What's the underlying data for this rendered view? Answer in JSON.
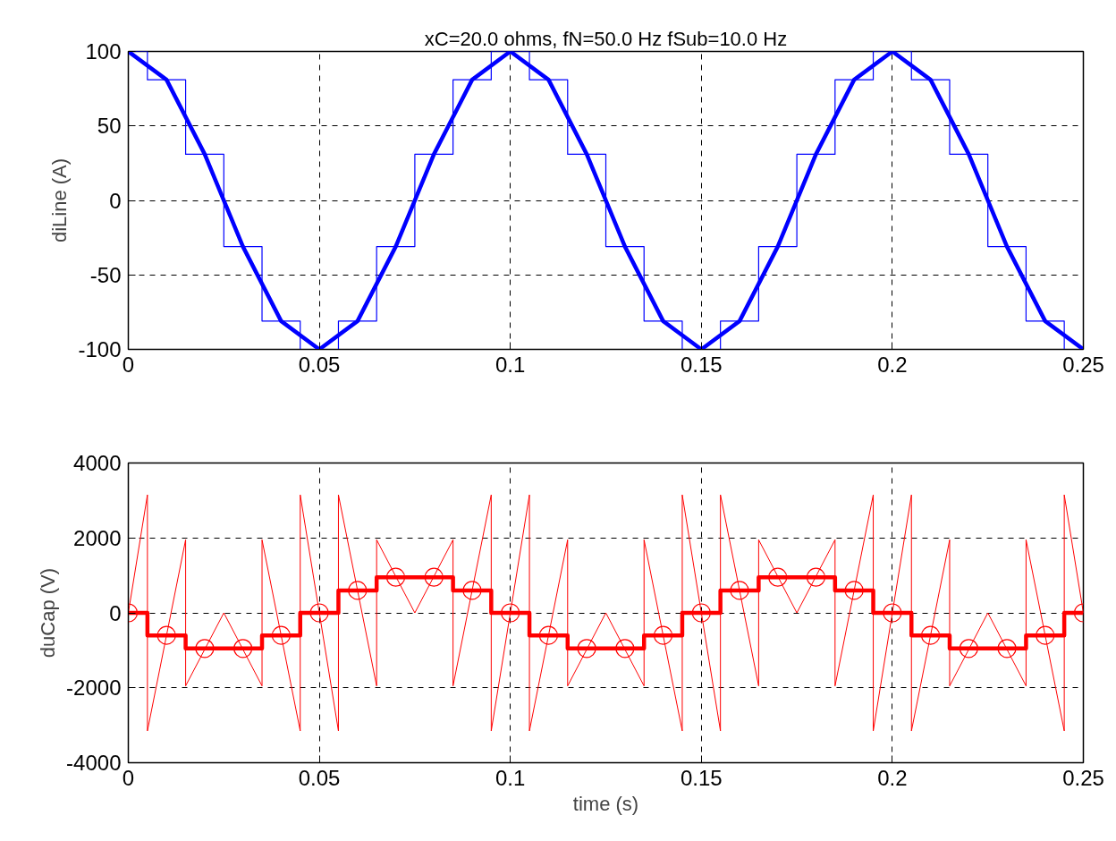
{
  "chart_data": [
    {
      "type": "line",
      "title": "xC=20.0 ohms, fN=50.0 Hz fSub=10.0 Hz",
      "ylabel": "diLine (A)",
      "xlim": [
        0,
        0.25
      ],
      "xticks": [
        0,
        0.05,
        0.1,
        0.15,
        0.2,
        0.25
      ],
      "ylim": [
        -100,
        100
      ],
      "yticks": [
        -100,
        -50,
        0,
        50,
        100
      ],
      "grid": true,
      "series": [
        {
          "color": "#0000ff",
          "x": [
            0,
            0.01,
            0.02,
            0.03,
            0.04,
            0.05,
            0.06,
            0.07,
            0.08,
            0.09,
            0.1,
            0.11,
            0.12,
            0.13,
            0.14,
            0.15,
            0.16,
            0.17,
            0.18,
            0.19,
            0.2,
            0.21,
            0.22,
            0.23,
            0.24,
            0.25
          ],
          "values": [
            100,
            81,
            31,
            -31,
            -81,
            -100,
            -81,
            -31,
            31,
            81,
            100,
            81,
            31,
            -31,
            -81,
            -100,
            -81,
            -31,
            31,
            81,
            100,
            81,
            31,
            -31,
            -81,
            -100
          ]
        },
        {
          "type": "step",
          "color": "#0000ff",
          "x": [
            0,
            0.01,
            0.02,
            0.03,
            0.04,
            0.05,
            0.06,
            0.07,
            0.08,
            0.09,
            0.1,
            0.11,
            0.12,
            0.13,
            0.14,
            0.15,
            0.16,
            0.17,
            0.18,
            0.19,
            0.2,
            0.21,
            0.22,
            0.23,
            0.24,
            0.25
          ],
          "values": [
            100,
            81,
            31,
            -31,
            -81,
            -100,
            -81,
            -31,
            31,
            81,
            100,
            81,
            31,
            -31,
            -81,
            -100,
            -81,
            -31,
            31,
            81,
            100,
            81,
            31,
            -31,
            -81,
            -100
          ]
        }
      ]
    },
    {
      "type": "line",
      "xlabel": "time (s)",
      "ylabel": "duCap (V)",
      "xlim": [
        0,
        0.25
      ],
      "xticks": [
        0,
        0.05,
        0.1,
        0.15,
        0.2,
        0.25
      ],
      "ylim": [
        -4000,
        4000
      ],
      "yticks": [
        -4000,
        -2000,
        0,
        2000,
        4000
      ],
      "grid": true,
      "series": [
        {
          "color": "#ff0000",
          "x": [
            0,
            0.005,
            0.005,
            0.015,
            0.015,
            0.025,
            0.035,
            0.035,
            0.045,
            0.045,
            0.055,
            0.055,
            0.065,
            0.065,
            0.075,
            0.085,
            0.085,
            0.095,
            0.095,
            0.105,
            0.105,
            0.115,
            0.115,
            0.125,
            0.135,
            0.135,
            0.145,
            0.145,
            0.155,
            0.155,
            0.165,
            0.165,
            0.175,
            0.185,
            0.185,
            0.195,
            0.195,
            0.205,
            0.205,
            0.215,
            0.215,
            0.225,
            0.235,
            0.235,
            0.245,
            0.245,
            0.25
          ],
          "values": [
            0,
            3150,
            -3150,
            1950,
            -1950,
            0,
            -1950,
            1950,
            -3150,
            3150,
            -3150,
            3150,
            -1950,
            1950,
            0,
            1950,
            -1950,
            3150,
            -3150,
            3150,
            -3150,
            1950,
            -1950,
            0,
            -1950,
            1950,
            -3150,
            3150,
            -3150,
            3150,
            -1950,
            1950,
            0,
            1950,
            -1950,
            3150,
            -3150,
            3150,
            -3150,
            1950,
            -1950,
            0,
            -1950,
            1950,
            -3150,
            3150,
            0
          ]
        },
        {
          "type": "step",
          "color": "#ff0000",
          "x": [
            0,
            0.01,
            0.02,
            0.03,
            0.04,
            0.05,
            0.06,
            0.07,
            0.08,
            0.09,
            0.1,
            0.11,
            0.12,
            0.13,
            0.14,
            0.15,
            0.16,
            0.17,
            0.18,
            0.19,
            0.2,
            0.21,
            0.22,
            0.23,
            0.24,
            0.25
          ],
          "values": [
            0,
            -600,
            -950,
            -950,
            -600,
            0,
            600,
            950,
            950,
            600,
            0,
            -600,
            -950,
            -950,
            -600,
            0,
            600,
            950,
            950,
            600,
            0,
            -600,
            -950,
            -950,
            -600,
            0
          ]
        },
        {
          "type": "scatter",
          "marker": "circle",
          "color": "#ff0000",
          "x": [
            0,
            0.01,
            0.02,
            0.03,
            0.04,
            0.05,
            0.06,
            0.07,
            0.08,
            0.09,
            0.1,
            0.11,
            0.12,
            0.13,
            0.14,
            0.15,
            0.16,
            0.17,
            0.18,
            0.19,
            0.2,
            0.21,
            0.22,
            0.23,
            0.24,
            0.25
          ],
          "values": [
            0,
            -600,
            -950,
            -950,
            -600,
            0,
            600,
            950,
            950,
            600,
            0,
            -600,
            -950,
            -950,
            -600,
            0,
            600,
            950,
            950,
            600,
            0,
            -600,
            -950,
            -950,
            -600,
            0
          ]
        }
      ]
    }
  ]
}
